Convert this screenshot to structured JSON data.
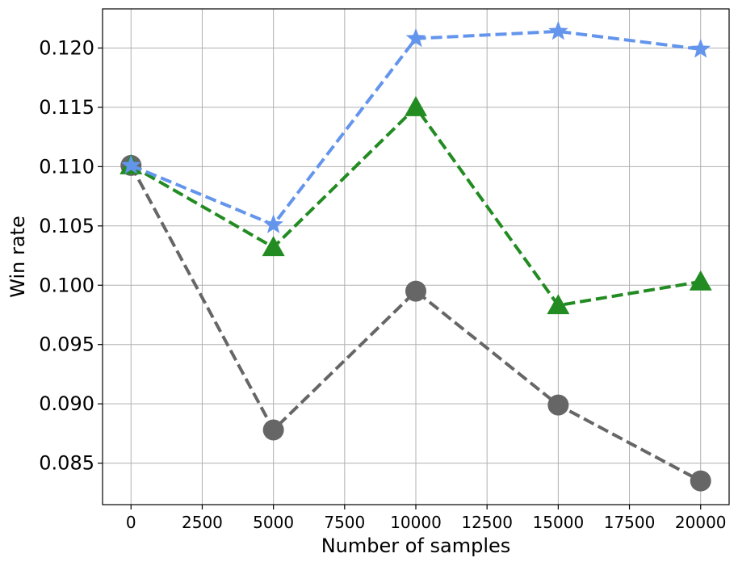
{
  "chart_data": {
    "type": "line",
    "xlabel": "Number of samples",
    "ylabel": "Win rate",
    "x": [
      0,
      5000,
      10000,
      15000,
      20000
    ],
    "xlim": [
      -1000,
      21000
    ],
    "ylim": [
      0.0815,
      0.1233
    ],
    "xticks": [
      0,
      2500,
      5000,
      7500,
      10000,
      12500,
      15000,
      17500,
      20000
    ],
    "yticks": [
      0.085,
      0.09,
      0.095,
      0.1,
      0.105,
      0.11,
      0.115,
      0.12
    ],
    "ytick_labels": [
      "0.085",
      "0.090",
      "0.095",
      "0.100",
      "0.105",
      "0.110",
      "0.115",
      "0.120"
    ],
    "grid": true,
    "series": [
      {
        "values": [
          0.1101,
          0.0878,
          0.0995,
          0.0899,
          0.0835
        ],
        "color": "#666666",
        "marker": "circle",
        "linestyle": "dashed"
      },
      {
        "values": [
          0.1101,
          0.1032,
          0.115,
          0.0983,
          0.1003
        ],
        "color": "#228b22",
        "marker": "triangle",
        "linestyle": "dashed"
      },
      {
        "values": [
          0.1101,
          0.1051,
          0.1208,
          0.1214,
          0.1199
        ],
        "color": "#6495ed",
        "marker": "star",
        "linestyle": "dashed"
      }
    ]
  }
}
